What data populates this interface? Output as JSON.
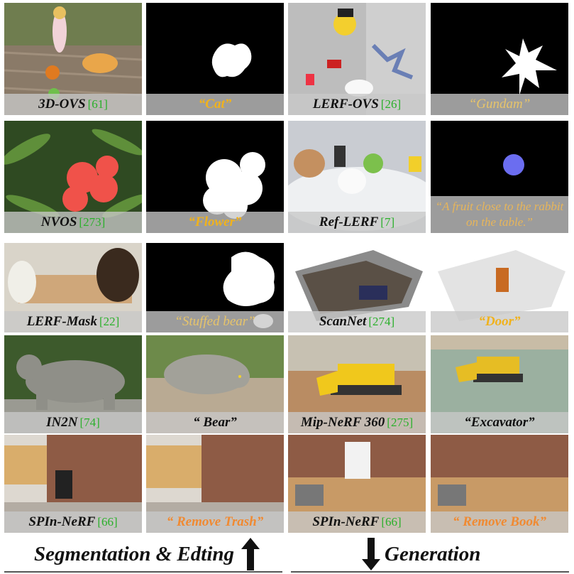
{
  "tiles": [
    {
      "label": "3D-OVS",
      "ref": "[61]",
      "style": "black"
    },
    {
      "label": "“Cat”",
      "ref": "",
      "style": "gold"
    },
    {
      "label": "LERF-OVS",
      "ref": "[26]",
      "style": "black"
    },
    {
      "label": "“Gundam”",
      "ref": "",
      "style": "pale"
    },
    {
      "label": "NVOS",
      "ref": "[273]",
      "style": "black"
    },
    {
      "label": "“Flower”",
      "ref": "",
      "style": "gold"
    },
    {
      "label": "Ref-LERF",
      "ref": "[7]",
      "style": "black"
    },
    {
      "label": "“A fruit close to the rabbit on the table.”",
      "ref": "",
      "style": "tall"
    },
    {
      "label": "LERF-Mask",
      "ref": "[22]",
      "style": "black"
    },
    {
      "label": "“Stuffed bear”",
      "ref": "",
      "style": "pale"
    },
    {
      "label": "ScanNet",
      "ref": "[274]",
      "style": "black"
    },
    {
      "label": "“Door”",
      "ref": "",
      "style": "gold"
    },
    {
      "label": "IN2N",
      "ref": "[74]",
      "style": "black"
    },
    {
      "label": "“ Bear”",
      "ref": "",
      "style": "black"
    },
    {
      "label": "Mip-NeRF 360",
      "ref": "[275]",
      "style": "black"
    },
    {
      "label": "“Excavator”",
      "ref": "",
      "style": "black"
    },
    {
      "label": "SPIn-NeRF",
      "ref": "[66]",
      "style": "black"
    },
    {
      "label": "“ Remove Trash”",
      "ref": "",
      "style": "orange"
    },
    {
      "label": "SPIn-NeRF",
      "ref": "[66]",
      "style": "black"
    },
    {
      "label": "“ Remove Book”",
      "ref": "",
      "style": "orange"
    }
  ],
  "footer": {
    "left": "Segmentation & Edting",
    "right": "Generation"
  },
  "icons": {
    "up": "up-arrow-icon",
    "down": "down-arrow-icon"
  }
}
